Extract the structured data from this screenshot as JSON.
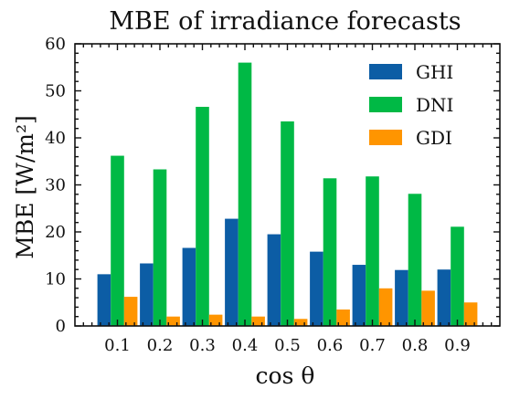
{
  "chart_data": {
    "type": "bar",
    "title": "MBE of irradiance forecasts",
    "xlabel": "cos θ",
    "ylabel": "MBE [W/m²]",
    "categories": [
      "0.1",
      "0.2",
      "0.3",
      "0.4",
      "0.5",
      "0.6",
      "0.7",
      "0.8",
      "0.9"
    ],
    "series": [
      {
        "name": "GHI",
        "color": "#0c5da5",
        "values": [
          11.0,
          13.3,
          16.6,
          22.8,
          19.5,
          15.8,
          13.0,
          11.9,
          12.0
        ]
      },
      {
        "name": "DNI",
        "color": "#00b945",
        "values": [
          36.2,
          33.3,
          46.6,
          56.0,
          43.5,
          31.4,
          31.8,
          28.1,
          21.1
        ]
      },
      {
        "name": "GDI",
        "color": "#ff9500",
        "values": [
          6.2,
          2.0,
          2.4,
          2.0,
          1.5,
          3.5,
          8.0,
          7.5,
          5.0
        ]
      }
    ],
    "ylim": [
      0,
      60
    ],
    "yticks": [
      "0",
      "10",
      "20",
      "30",
      "40",
      "50",
      "60"
    ],
    "legend_position": "top-right",
    "grid": false
  }
}
